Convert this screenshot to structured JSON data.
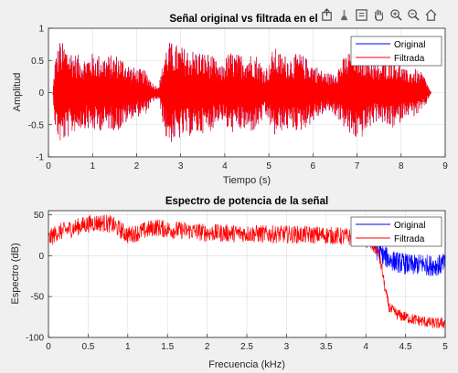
{
  "colors": {
    "original": "#0000ff",
    "filtrada": "#ff0000",
    "axes_bg": "#ffffff",
    "figure_bg": "#f0f0f0",
    "grid": "#dcdcdc"
  },
  "toolbar": {
    "icons": [
      "export-icon",
      "brush-icon",
      "data-tips-icon",
      "pan-icon",
      "zoom-in-icon",
      "zoom-out-icon",
      "home-icon"
    ]
  },
  "chart_data": [
    {
      "type": "line",
      "title": "Señal original vs filtrada en el t",
      "xlabel": "Tiempo (s)",
      "ylabel": "Amplitud",
      "xlim": [
        0,
        9
      ],
      "ylim": [
        -1,
        1
      ],
      "xticks": [
        "0",
        "1",
        "2",
        "3",
        "4",
        "5",
        "6",
        "7",
        "8",
        "9"
      ],
      "yticks": [
        "-1",
        "-0.5",
        "0",
        "0.5",
        "1"
      ],
      "grid": true,
      "legend": "top-right",
      "series": [
        {
          "name": "Original",
          "color": "#0000ff"
        },
        {
          "name": "Filtrada",
          "color": "#ff0000"
        }
      ],
      "envelope": {
        "t": [
          0.1,
          0.15,
          0.25,
          0.4,
          0.6,
          0.8,
          1.0,
          1.3,
          1.6,
          1.9,
          2.2,
          2.4,
          2.5,
          2.55,
          2.65,
          2.75,
          2.9,
          3.1,
          3.4,
          3.7,
          3.9,
          4.1,
          4.3,
          4.5,
          4.7,
          4.9,
          5.0,
          5.1,
          5.3,
          5.5,
          5.7,
          5.9,
          6.2,
          6.4,
          6.6,
          6.9,
          7.1,
          7.3,
          7.5,
          7.7,
          7.9,
          8.1,
          8.3,
          8.5,
          8.68
        ],
        "amp": [
          0.0,
          0.55,
          0.82,
          0.74,
          0.62,
          0.55,
          0.62,
          0.58,
          0.6,
          0.4,
          0.35,
          0.12,
          0.12,
          0.28,
          0.72,
          0.8,
          0.76,
          0.7,
          0.66,
          0.6,
          0.4,
          0.65,
          0.6,
          0.62,
          0.62,
          0.4,
          0.45,
          0.72,
          0.6,
          0.58,
          0.62,
          0.52,
          0.35,
          0.3,
          0.45,
          0.75,
          0.72,
          0.55,
          0.42,
          0.58,
          0.55,
          0.35,
          0.38,
          0.3,
          0.0
        ]
      }
    },
    {
      "type": "line",
      "title": "Espectro de potencia de la señal",
      "xlabel": "Frecuencia (kHz)",
      "ylabel": "Espectro (dB)",
      "xlim": [
        0,
        5
      ],
      "ylim": [
        -100,
        55
      ],
      "xticks": [
        "0",
        "0.5",
        "1",
        "1.5",
        "2",
        "2.5",
        "3",
        "3.5",
        "4",
        "4.5",
        "5"
      ],
      "yticks": [
        "-100",
        "-50",
        "0",
        "50"
      ],
      "grid": true,
      "legend": "top-right",
      "series": [
        {
          "name": "Original",
          "color": "#0000ff",
          "x": [
            4.1,
            4.2,
            4.3,
            4.4,
            4.5,
            4.6,
            4.7,
            4.8,
            4.9,
            5.0
          ],
          "y": [
            10,
            2,
            -5,
            -8,
            -10,
            -12,
            -10,
            -12,
            -12,
            -10
          ]
        },
        {
          "name": "Filtrada",
          "color": "#ff0000",
          "x": [
            0,
            0.1,
            0.25,
            0.4,
            0.55,
            0.7,
            0.8,
            0.9,
            1.0,
            1.2,
            1.35,
            1.5,
            1.8,
            2.0,
            2.5,
            3.0,
            3.5,
            3.9,
            4.0,
            4.1,
            4.15,
            4.2,
            4.25,
            4.3,
            4.4,
            4.5,
            4.6,
            4.7,
            4.8,
            4.9,
            5.0
          ],
          "y": [
            20,
            28,
            32,
            36,
            40,
            40,
            38,
            32,
            25,
            30,
            35,
            32,
            30,
            28,
            27,
            26,
            25,
            22,
            20,
            12,
            5,
            -15,
            -45,
            -65,
            -72,
            -75,
            -78,
            -80,
            -82,
            -83,
            -82
          ]
        }
      ]
    }
  ]
}
